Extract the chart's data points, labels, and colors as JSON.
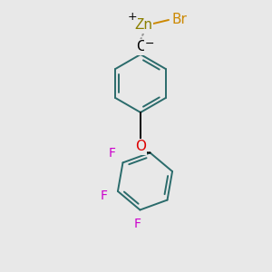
{
  "bg_color": "#e8e8e8",
  "ring_color": "#2a6b6b",
  "line_color": "#000000",
  "zn_color": "#8B8B00",
  "br_color": "#cc8800",
  "o_color": "#dd0000",
  "f_color": "#cc00cc",
  "dashed_color": "#888888",
  "zn_label": "Zn",
  "br_label": "Br",
  "o_label": "O",
  "f_label": "F",
  "c_label": "C",
  "plus_label": "+",
  "minus_label": "−",
  "figsize": [
    3.0,
    3.0
  ],
  "dpi": 100
}
